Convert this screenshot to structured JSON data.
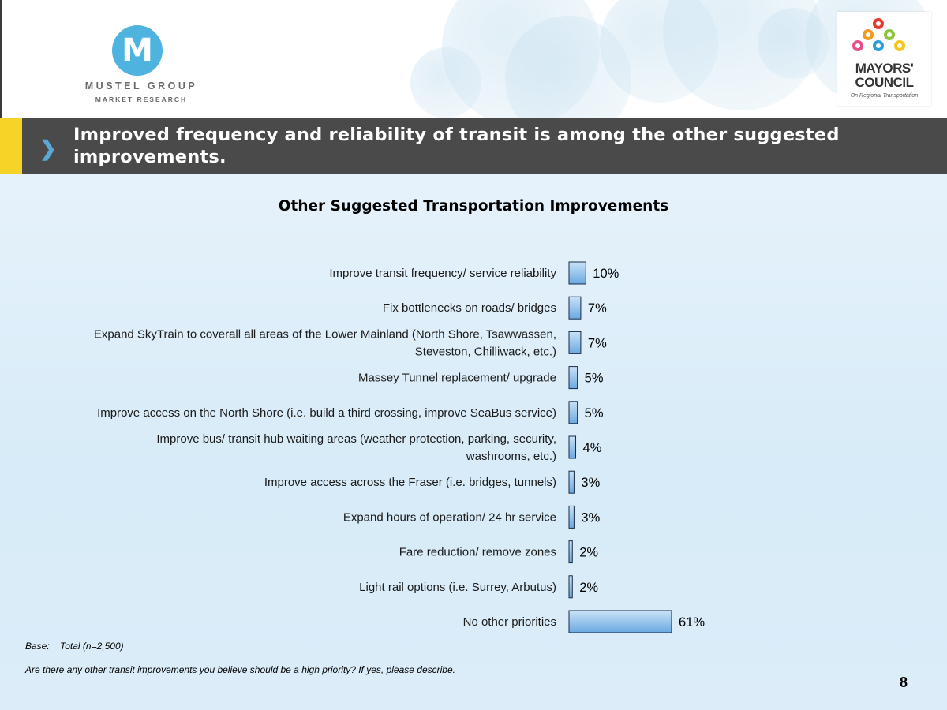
{
  "header": {
    "mustel_logo": {
      "letter": "M",
      "name": "MUSTEL GROUP",
      "subtitle": "MARKET RESEARCH"
    },
    "mayors_logo": {
      "line1": "MAYORS'",
      "line2": "COUNCIL",
      "line3": "On Regional Transportation"
    },
    "slide_title": "Improved frequency and reliability of transit is among the other suggested improvements."
  },
  "colors": {
    "title_bar": "#4a4a4a",
    "title_accent": "#f5d327",
    "bar_fill_top": "#c8e2f7",
    "bar_fill_bottom": "#6aa9e2",
    "bar_stroke": "#1a2a44"
  },
  "chart_data": {
    "type": "bar",
    "orientation": "horizontal",
    "title": "Other Suggested Transportation Improvements",
    "categories": [
      "Improve transit frequency/ service reliability",
      "Fix bottlenecks on roads/ bridges",
      "Expand SkyTrain to coverall all areas of the Lower Mainland (North Shore, Tsawwassen, Steveston, Chilliwack, etc.)",
      "Massey Tunnel replacement/ upgrade",
      "Improve access on the North Shore (i.e. build a third crossing, improve SeaBus service)",
      "Improve bus/ transit hub waiting areas (weather protection, parking, security, washrooms, etc.)",
      "Improve access across the Fraser (i.e. bridges, tunnels)",
      "Expand hours of operation/ 24 hr service",
      "Fare reduction/ remove zones",
      "Light rail options (i.e. Surrey, Arbutus)",
      "No other priorities"
    ],
    "category_lines": [
      [
        "Improve transit frequency/ service reliability"
      ],
      [
        "Fix bottlenecks on roads/ bridges"
      ],
      [
        "Expand SkyTrain to coverall all areas of the Lower Mainland (North Shore, Tsawwassen,",
        "Steveston, Chilliwack, etc.)"
      ],
      [
        "Massey Tunnel replacement/ upgrade"
      ],
      [
        "Improve access on the North Shore (i.e. build a third crossing, improve SeaBus service)"
      ],
      [
        "Improve bus/ transit hub waiting areas (weather protection, parking, security,",
        "washrooms, etc.)"
      ],
      [
        "Improve access across the Fraser (i.e. bridges, tunnels)"
      ],
      [
        "Expand hours of operation/ 24 hr service"
      ],
      [
        "Fare reduction/ remove zones"
      ],
      [
        "Light rail options (i.e. Surrey, Arbutus)"
      ],
      [
        "No other priorities"
      ]
    ],
    "values": [
      10,
      7,
      7,
      5,
      5,
      4,
      3,
      3,
      2,
      2,
      61
    ],
    "value_labels": [
      "10%",
      "7%",
      "7%",
      "5%",
      "5%",
      "4%",
      "3%",
      "3%",
      "2%",
      "2%",
      "61%"
    ],
    "unit": "%",
    "xlim": [
      0,
      100
    ],
    "grid": false,
    "legend": "none"
  },
  "footer": {
    "base_label": "Base:",
    "base_value": "Total (n=2,500)",
    "question": "Are there any other transit improvements you believe should be a high priority?  If yes, please describe.",
    "page_number": "8"
  }
}
